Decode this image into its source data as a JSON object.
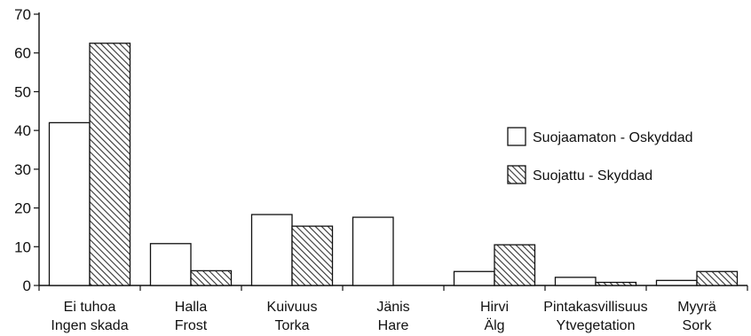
{
  "chart_data": {
    "type": "bar",
    "title": "",
    "xlabel": "",
    "ylabel": "",
    "ylim": [
      0,
      70
    ],
    "yticks": [
      0,
      10,
      20,
      30,
      40,
      50,
      60,
      70
    ],
    "grid": false,
    "legend_position": "right",
    "categories": [
      [
        "Ei tuhoa",
        "Ingen skada"
      ],
      [
        "Halla",
        "Frost"
      ],
      [
        "Kuivuus",
        "Torka"
      ],
      [
        "Jänis",
        "Hare"
      ],
      [
        "Hirvi",
        "Älg"
      ],
      [
        "Pintakasvillisuus",
        "Ytvegetation"
      ],
      [
        "Myyrä",
        "Sork"
      ]
    ],
    "series": [
      {
        "name": "Suojaamaton  - Oskyddad",
        "fill": "open",
        "values": [
          42,
          10.8,
          18.3,
          17.6,
          3.6,
          2.1,
          1.3
        ]
      },
      {
        "name": "Suojattu  -  Skyddad",
        "fill": "hatched",
        "values": [
          62.5,
          3.8,
          15.3,
          0,
          10.5,
          0.8,
          3.6
        ]
      }
    ],
    "colors": {
      "stroke": "#111111",
      "open_fill": "#ffffff",
      "hatch": "#333333"
    }
  }
}
